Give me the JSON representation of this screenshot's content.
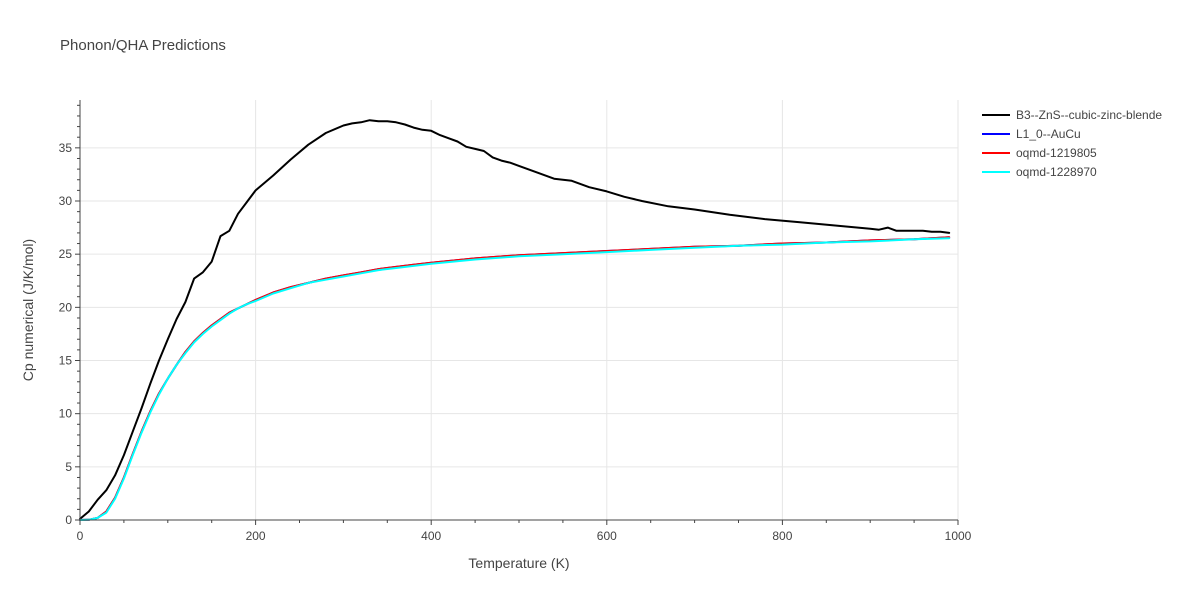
{
  "chart_data": {
    "type": "line",
    "title": "Phonon/QHA Predictions",
    "xlabel": "Temperature (K)",
    "ylabel": "Cp numerical (J/K/mol)",
    "xlim": [
      0,
      1000
    ],
    "ylim": [
      0,
      39.5
    ],
    "xticks": [
      0,
      200,
      400,
      600,
      800,
      1000
    ],
    "yticks": [
      0,
      5,
      10,
      15,
      20,
      25,
      30,
      35
    ],
    "grid": true,
    "legend_position": "top-right",
    "series": [
      {
        "name": "B3--ZnS--cubic-zinc-blende",
        "color": "#000000",
        "x": [
          0,
          10,
          20,
          30,
          40,
          50,
          60,
          70,
          80,
          90,
          100,
          110,
          120,
          130,
          140,
          150,
          160,
          170,
          180,
          190,
          200,
          220,
          240,
          260,
          280,
          300,
          310,
          320,
          330,
          340,
          350,
          360,
          370,
          380,
          390,
          400,
          410,
          420,
          430,
          440,
          450,
          460,
          470,
          480,
          490,
          500,
          520,
          540,
          550,
          560,
          580,
          600,
          620,
          640,
          670,
          700,
          740,
          780,
          820,
          860,
          900,
          910,
          920,
          930,
          940,
          950,
          960,
          970,
          980,
          990
        ],
        "y": [
          0.1,
          0.8,
          1.9,
          2.8,
          4.2,
          6.1,
          8.3,
          10.5,
          12.8,
          15.0,
          17.0,
          18.9,
          20.5,
          22.7,
          23.3,
          24.3,
          26.7,
          27.2,
          28.8,
          29.9,
          31.0,
          32.4,
          33.9,
          35.3,
          36.4,
          37.1,
          37.3,
          37.4,
          37.6,
          37.5,
          37.5,
          37.4,
          37.2,
          36.9,
          36.7,
          36.6,
          36.2,
          35.9,
          35.6,
          35.1,
          34.9,
          34.7,
          34.1,
          33.8,
          33.6,
          33.3,
          32.7,
          32.1,
          32.0,
          31.9,
          31.3,
          30.9,
          30.4,
          30.0,
          29.5,
          29.2,
          28.7,
          28.3,
          28.0,
          27.7,
          27.4,
          27.3,
          27.5,
          27.2,
          27.2,
          27.2,
          27.2,
          27.1,
          27.1,
          27.0
        ]
      },
      {
        "name": "L1_0--AuCu",
        "color": "#0000ff",
        "x": [
          0,
          10,
          20,
          30,
          40,
          50,
          60,
          70,
          80,
          90,
          100,
          110,
          120,
          130,
          140,
          150,
          160,
          170,
          180,
          190,
          200,
          220,
          240,
          260,
          280,
          300,
          320,
          340,
          360,
          380,
          400,
          450,
          500,
          550,
          600,
          650,
          700,
          750,
          800,
          850,
          900,
          950,
          990
        ],
        "y": [
          0.0,
          0.02,
          0.2,
          0.8,
          2.1,
          4.0,
          6.2,
          8.3,
          10.2,
          11.9,
          13.3,
          14.6,
          15.8,
          16.8,
          17.6,
          18.3,
          18.9,
          19.5,
          19.9,
          20.3,
          20.7,
          21.4,
          21.9,
          22.3,
          22.7,
          23.0,
          23.3,
          23.6,
          23.8,
          24.0,
          24.2,
          24.6,
          24.9,
          25.1,
          25.3,
          25.5,
          25.7,
          25.8,
          26.0,
          26.1,
          26.3,
          26.4,
          26.6
        ]
      },
      {
        "name": "oqmd-1219805",
        "color": "#ff0000",
        "x": [
          0,
          10,
          20,
          30,
          40,
          50,
          60,
          70,
          80,
          90,
          100,
          110,
          120,
          130,
          140,
          150,
          160,
          170,
          180,
          190,
          200,
          220,
          240,
          260,
          280,
          300,
          320,
          340,
          360,
          380,
          400,
          450,
          500,
          550,
          600,
          650,
          700,
          750,
          800,
          850,
          900,
          950,
          990
        ],
        "y": [
          0.0,
          0.02,
          0.2,
          0.8,
          2.1,
          4.0,
          6.2,
          8.3,
          10.2,
          11.9,
          13.3,
          14.6,
          15.8,
          16.8,
          17.6,
          18.3,
          18.9,
          19.5,
          19.9,
          20.3,
          20.7,
          21.4,
          21.9,
          22.3,
          22.7,
          23.0,
          23.3,
          23.6,
          23.8,
          24.0,
          24.2,
          24.6,
          24.9,
          25.1,
          25.3,
          25.5,
          25.7,
          25.8,
          26.0,
          26.1,
          26.3,
          26.4,
          26.6
        ]
      },
      {
        "name": "oqmd-1228970",
        "color": "#00ffff",
        "x": [
          0,
          10,
          20,
          30,
          40,
          50,
          60,
          70,
          80,
          90,
          100,
          110,
          120,
          130,
          140,
          150,
          160,
          170,
          180,
          190,
          200,
          220,
          240,
          260,
          280,
          300,
          320,
          340,
          360,
          380,
          400,
          450,
          500,
          550,
          600,
          650,
          700,
          750,
          800,
          850,
          900,
          950,
          990
        ],
        "y": [
          0.0,
          0.02,
          0.2,
          0.7,
          2.0,
          3.9,
          6.1,
          8.2,
          10.1,
          11.8,
          13.3,
          14.6,
          15.7,
          16.7,
          17.5,
          18.2,
          18.8,
          19.4,
          19.9,
          20.3,
          20.6,
          21.3,
          21.8,
          22.3,
          22.6,
          22.9,
          23.2,
          23.5,
          23.7,
          23.9,
          24.1,
          24.5,
          24.8,
          25.0,
          25.2,
          25.4,
          25.6,
          25.8,
          25.9,
          26.1,
          26.2,
          26.4,
          26.5
        ]
      }
    ]
  }
}
